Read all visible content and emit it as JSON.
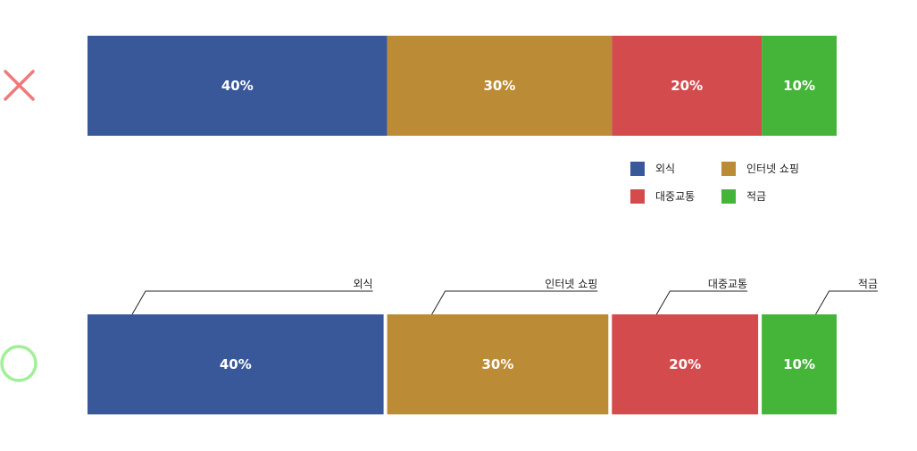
{
  "chart_data": [
    {
      "type": "bar",
      "variant": "stacked-100-horizontal",
      "verdict_icon": "cross-icon",
      "verdict_color": "#f07a7a",
      "label_style": "legend",
      "legend_position": "below-right",
      "series": [
        {
          "name": "외식",
          "value": 40,
          "label": "40%",
          "color": "#38589a"
        },
        {
          "name": "인터넷 쇼핑",
          "value": 30,
          "label": "30%",
          "color": "#bc8b35"
        },
        {
          "name": "대중교통",
          "value": 20,
          "label": "20%",
          "color": "#d44b4e"
        },
        {
          "name": "적금",
          "value": 10,
          "label": "10%",
          "color": "#45b53a"
        }
      ]
    },
    {
      "type": "bar",
      "variant": "stacked-100-horizontal",
      "verdict_icon": "circle-check-icon",
      "verdict_color": "#9ff096",
      "label_style": "callout",
      "segment_gaps": true,
      "series": [
        {
          "name": "외식",
          "value": 40,
          "label": "40%",
          "color": "#38589a"
        },
        {
          "name": "인터넷 쇼핑",
          "value": 30,
          "label": "30%",
          "color": "#bc8b35"
        },
        {
          "name": "대중교통",
          "value": 20,
          "label": "20%",
          "color": "#d44b4e"
        },
        {
          "name": "적금",
          "value": 10,
          "label": "10%",
          "color": "#45b53a"
        }
      ]
    }
  ]
}
